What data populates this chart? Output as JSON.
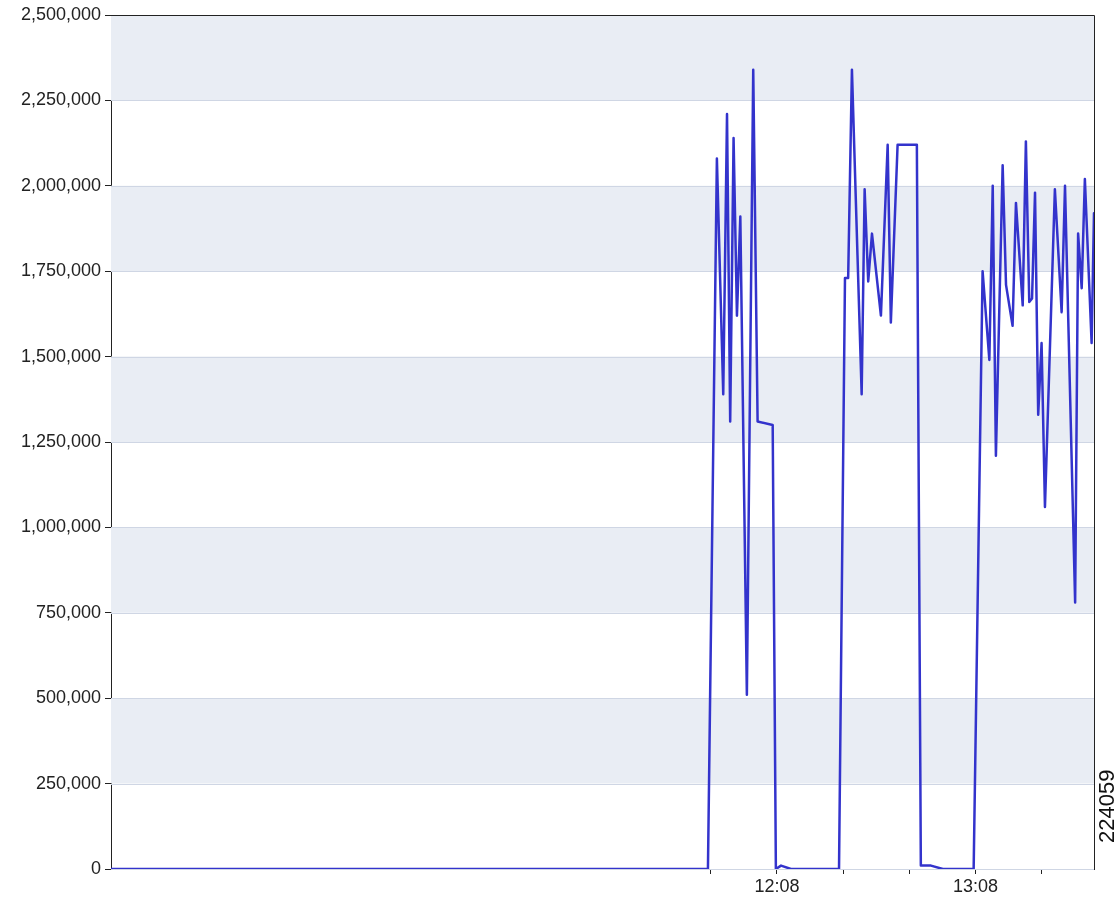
{
  "chart_data": {
    "type": "line",
    "color": "#3333cc",
    "x": [
      8.78,
      11.786,
      11.831,
      11.863,
      11.882,
      11.898,
      11.915,
      11.932,
      11.949,
      11.982,
      12.014,
      12.036,
      12.112,
      12.128,
      12.154,
      12.204,
      12.446,
      12.476,
      12.492,
      12.511,
      12.56,
      12.575,
      12.593,
      12.612,
      12.657,
      12.691,
      12.707,
      12.741,
      12.838,
      12.858,
      12.909,
      12.969,
      13.124,
      13.169,
      13.203,
      13.22,
      13.236,
      13.27,
      13.287,
      13.32,
      13.337,
      13.371,
      13.387,
      13.404,
      13.418,
      13.433,
      13.449,
      13.466,
      13.483,
      13.533,
      13.567,
      13.584,
      13.635,
      13.65,
      13.668,
      13.684,
      13.718,
      13.73
    ],
    "values": [
      0,
      0,
      2080000,
      1390000,
      2210000,
      1310000,
      2140000,
      1620000,
      1910000,
      510000,
      2340000,
      1310000,
      1300000,
      0,
      10000,
      0,
      0,
      1730000,
      1730000,
      2340000,
      1390000,
      1990000,
      1720000,
      1860000,
      1620000,
      2120000,
      1600000,
      2120000,
      2120000,
      10000,
      10000,
      0,
      0,
      1750000,
      1490000,
      2000000,
      1210000,
      2060000,
      1710000,
      1590000,
      1950000,
      1650000,
      2130000,
      1660000,
      1670000,
      1980000,
      1330000,
      1540000,
      1060000,
      1990000,
      1630000,
      2000000,
      780000,
      1860000,
      1700000,
      2020000,
      1540000,
      1920000
    ],
    "xlim": [
      8.78,
      13.73
    ],
    "xticks": [
      {
        "value": 11.8,
        "label": null
      },
      {
        "value": 12.1333,
        "label": "12:08"
      },
      {
        "value": 12.4667,
        "label": null
      },
      {
        "value": 12.8,
        "label": null
      },
      {
        "value": 13.1333,
        "label": "13:08"
      },
      {
        "value": 13.4667,
        "label": null
      }
    ],
    "ylim": [
      0,
      2500000
    ],
    "yticks": [
      0,
      {
        "value": 250000,
        "label": "250,000"
      },
      {
        "value": 500000,
        "label": "500,000"
      },
      {
        "value": 750000,
        "label": "750,000"
      },
      {
        "value": 1000000,
        "label": "1,000,000"
      },
      {
        "value": 1250000,
        "label": "1,250,000"
      },
      {
        "value": 1500000,
        "label": "1,500,000"
      },
      {
        "value": 1750000,
        "label": "1,750,000"
      },
      {
        "value": 2000000,
        "label": "2,000,000"
      },
      {
        "value": 2250000,
        "label": "2,250,000"
      },
      {
        "value": 2500000,
        "label": "2,500,000"
      }
    ],
    "grid": "y",
    "annotations": [
      "224059"
    ]
  }
}
